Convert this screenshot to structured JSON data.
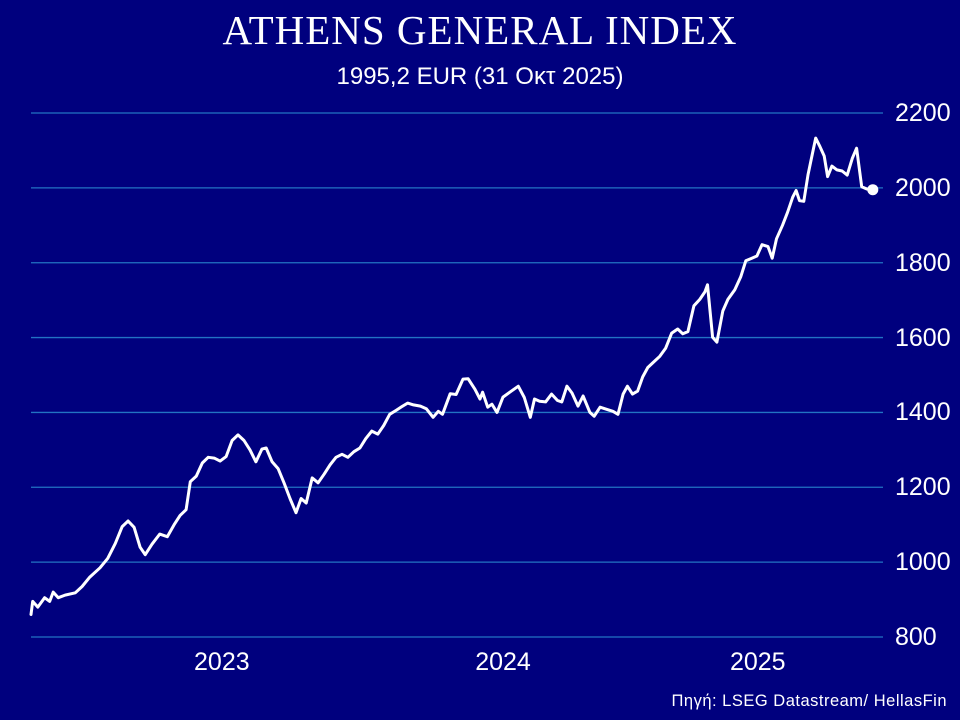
{
  "title": "ATHENS GENERAL INDEX",
  "subtitle": "1995,2 EUR (31 Οκτ 2025)",
  "source": "Πηγή: LSEG Datastream/ HellasFin",
  "colors": {
    "background": "#00007e",
    "gridline": "#2273c3",
    "line": "#ffffff",
    "text": "#ffffff"
  },
  "chart_data": {
    "type": "line",
    "title": "ATHENS GENERAL INDEX",
    "subtitle": "1995,2 EUR (31 Οκτ 2025)",
    "xlabel": "",
    "ylabel": "",
    "ylim": [
      800,
      2200
    ],
    "y_ticks": [
      2200,
      2000,
      1800,
      1600,
      1400,
      1200,
      1000,
      800
    ],
    "x_ticks": [
      "2023",
      "2024",
      "2025"
    ],
    "grid": "horizontal",
    "legend": "none",
    "last_value": "1995,2 EUR",
    "last_date": "31 Οκτ 2025",
    "series": [
      {
        "name": "Athens General Index (EUR)",
        "points": [
          [
            0.0,
            860
          ],
          [
            0.002,
            895
          ],
          [
            0.008,
            880
          ],
          [
            0.016,
            905
          ],
          [
            0.022,
            895
          ],
          [
            0.026,
            920
          ],
          [
            0.032,
            905
          ],
          [
            0.04,
            912
          ],
          [
            0.052,
            918
          ],
          [
            0.06,
            935
          ],
          [
            0.069,
            960
          ],
          [
            0.081,
            985
          ],
          [
            0.09,
            1010
          ],
          [
            0.099,
            1050
          ],
          [
            0.107,
            1095
          ],
          [
            0.114,
            1110
          ],
          [
            0.121,
            1093
          ],
          [
            0.128,
            1040
          ],
          [
            0.134,
            1020
          ],
          [
            0.142,
            1048
          ],
          [
            0.151,
            1075
          ],
          [
            0.16,
            1068
          ],
          [
            0.168,
            1100
          ],
          [
            0.175,
            1125
          ],
          [
            0.182,
            1140
          ],
          [
            0.187,
            1215
          ],
          [
            0.194,
            1230
          ],
          [
            0.201,
            1265
          ],
          [
            0.208,
            1280
          ],
          [
            0.215,
            1278
          ],
          [
            0.222,
            1270
          ],
          [
            0.229,
            1282
          ],
          [
            0.236,
            1325
          ],
          [
            0.243,
            1340
          ],
          [
            0.25,
            1325
          ],
          [
            0.257,
            1300
          ],
          [
            0.264,
            1268
          ],
          [
            0.271,
            1302
          ],
          [
            0.276,
            1305
          ],
          [
            0.283,
            1268
          ],
          [
            0.29,
            1250
          ],
          [
            0.297,
            1212
          ],
          [
            0.304,
            1170
          ],
          [
            0.311,
            1132
          ],
          [
            0.317,
            1170
          ],
          [
            0.323,
            1158
          ],
          [
            0.33,
            1225
          ],
          [
            0.337,
            1212
          ],
          [
            0.344,
            1235
          ],
          [
            0.351,
            1260
          ],
          [
            0.358,
            1280
          ],
          [
            0.365,
            1288
          ],
          [
            0.372,
            1280
          ],
          [
            0.379,
            1295
          ],
          [
            0.386,
            1305
          ],
          [
            0.393,
            1330
          ],
          [
            0.4,
            1350
          ],
          [
            0.407,
            1342
          ],
          [
            0.414,
            1365
          ],
          [
            0.421,
            1395
          ],
          [
            0.428,
            1405
          ],
          [
            0.435,
            1415
          ],
          [
            0.442,
            1425
          ],
          [
            0.449,
            1420
          ],
          [
            0.457,
            1417
          ],
          [
            0.464,
            1410
          ],
          [
            0.472,
            1387
          ],
          [
            0.478,
            1403
          ],
          [
            0.483,
            1395
          ],
          [
            0.492,
            1450
          ],
          [
            0.499,
            1448
          ],
          [
            0.507,
            1489
          ],
          [
            0.513,
            1490
          ],
          [
            0.521,
            1462
          ],
          [
            0.527,
            1436
          ],
          [
            0.53,
            1454
          ],
          [
            0.536,
            1414
          ],
          [
            0.541,
            1422
          ],
          [
            0.547,
            1400
          ],
          [
            0.554,
            1441
          ],
          [
            0.562,
            1454
          ],
          [
            0.572,
            1470
          ],
          [
            0.579,
            1440
          ],
          [
            0.586,
            1387
          ],
          [
            0.591,
            1436
          ],
          [
            0.597,
            1430
          ],
          [
            0.604,
            1428
          ],
          [
            0.611,
            1449
          ],
          [
            0.618,
            1432
          ],
          [
            0.623,
            1428
          ],
          [
            0.629,
            1470
          ],
          [
            0.635,
            1452
          ],
          [
            0.642,
            1417
          ],
          [
            0.648,
            1444
          ],
          [
            0.656,
            1400
          ],
          [
            0.661,
            1390
          ],
          [
            0.668,
            1414
          ],
          [
            0.676,
            1408
          ],
          [
            0.683,
            1403
          ],
          [
            0.689,
            1395
          ],
          [
            0.695,
            1449
          ],
          [
            0.7,
            1470
          ],
          [
            0.706,
            1449
          ],
          [
            0.712,
            1457
          ],
          [
            0.718,
            1495
          ],
          [
            0.724,
            1520
          ],
          [
            0.731,
            1535
          ],
          [
            0.738,
            1550
          ],
          [
            0.745,
            1572
          ],
          [
            0.752,
            1612
          ],
          [
            0.759,
            1623
          ],
          [
            0.765,
            1610
          ],
          [
            0.771,
            1616
          ],
          [
            0.778,
            1685
          ],
          [
            0.785,
            1702
          ],
          [
            0.791,
            1722
          ],
          [
            0.794,
            1741
          ],
          [
            0.8,
            1601
          ],
          [
            0.805,
            1588
          ],
          [
            0.812,
            1671
          ],
          [
            0.818,
            1702
          ],
          [
            0.826,
            1728
          ],
          [
            0.833,
            1762
          ],
          [
            0.839,
            1805
          ],
          [
            0.846,
            1812
          ],
          [
            0.852,
            1818
          ],
          [
            0.858,
            1848
          ],
          [
            0.865,
            1843
          ],
          [
            0.87,
            1812
          ],
          [
            0.875,
            1864
          ],
          [
            0.882,
            1900
          ],
          [
            0.888,
            1935
          ],
          [
            0.894,
            1975
          ],
          [
            0.898,
            1993
          ],
          [
            0.902,
            1966
          ],
          [
            0.907,
            1964
          ],
          [
            0.912,
            2035
          ],
          [
            0.917,
            2090
          ],
          [
            0.921,
            2133
          ],
          [
            0.926,
            2110
          ],
          [
            0.931,
            2085
          ],
          [
            0.935,
            2030
          ],
          [
            0.94,
            2058
          ],
          [
            0.946,
            2048
          ],
          [
            0.952,
            2045
          ],
          [
            0.958,
            2034
          ],
          [
            0.964,
            2079
          ],
          [
            0.969,
            2106
          ],
          [
            0.975,
            2003
          ],
          [
            0.981,
            1997
          ],
          [
            0.988,
            1995.2
          ]
        ]
      }
    ]
  }
}
